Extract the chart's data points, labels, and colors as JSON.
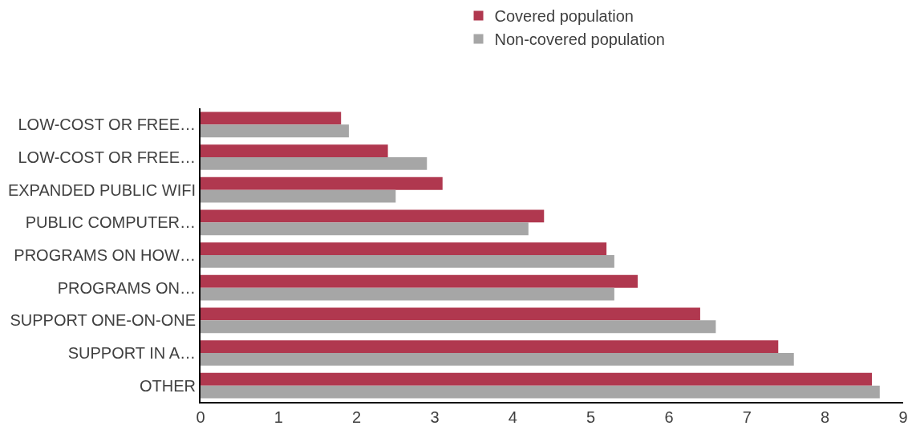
{
  "chart_data": {
    "type": "bar",
    "orientation": "horizontal",
    "categories": [
      "LOW-COST OR FREE…",
      "LOW-COST OR FREE…",
      "EXPANDED PUBLIC WIFI",
      "PUBLIC COMPUTER…",
      "PROGRAMS ON HOW…",
      "PROGRAMS ON…",
      "SUPPORT ONE-ON-ONE",
      "SUPPORT IN A…",
      "OTHER"
    ],
    "series": [
      {
        "name": "Covered population",
        "color": "#b0384f",
        "values": [
          1.8,
          2.4,
          3.1,
          4.4,
          5.2,
          5.6,
          6.4,
          7.4,
          8.6
        ]
      },
      {
        "name": "Non-covered population",
        "color": "#a6a6a6",
        "values": [
          1.9,
          2.9,
          2.5,
          4.2,
          5.3,
          5.3,
          6.6,
          7.6,
          8.7
        ]
      }
    ],
    "xlim": [
      0,
      9
    ],
    "xticks": [
      0,
      1,
      2,
      3,
      4,
      5,
      6,
      7,
      8,
      9
    ],
    "legend": "top"
  }
}
